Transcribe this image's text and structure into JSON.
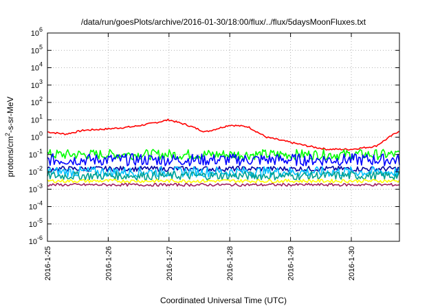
{
  "chart_data": {
    "type": "line",
    "title": "/data/run/goesPlots/archive/2016-01-30/18:00/flux/../flux/5daysMoonFluxes.txt",
    "xlabel": "Coordinated Universal Time (UTC)",
    "ylabel": {
      "prefix": "protons/cm",
      "sup": "2",
      "suffix": "-s-sr-MeV"
    },
    "x_range": [
      "2016-01-25",
      "2016-01-30T19:00"
    ],
    "x_ticks": [
      "2016-1-25",
      "2016-1-26",
      "2016-1-27",
      "2016-1-28",
      "2016-1-29",
      "2016-1-30"
    ],
    "y_scale": "log",
    "y_range": [
      1e-06,
      1000000.0
    ],
    "y_ticks": [
      {
        "base": "10",
        "exp": "-6"
      },
      {
        "base": "10",
        "exp": "-5"
      },
      {
        "base": "10",
        "exp": "-4"
      },
      {
        "base": "10",
        "exp": "-3"
      },
      {
        "base": "10",
        "exp": "-2"
      },
      {
        "base": "10",
        "exp": "-1"
      },
      {
        "base": "10",
        "exp": "0"
      },
      {
        "base": "10",
        "exp": "1"
      },
      {
        "base": "10",
        "exp": "2"
      },
      {
        "base": "10",
        "exp": "3"
      },
      {
        "base": "10",
        "exp": "4"
      },
      {
        "base": "10",
        "exp": "5"
      },
      {
        "base": "10",
        "exp": "6"
      }
    ],
    "grid": true,
    "series": [
      {
        "color": "#ff0000",
        "noise": 0.05,
        "x_days": [
          0,
          0.3,
          0.6,
          1.0,
          1.4,
          1.7,
          2.0,
          2.3,
          2.6,
          3.0,
          3.3,
          3.6,
          4.0,
          4.3,
          4.6,
          5.0,
          5.4,
          5.8
        ],
        "y": [
          2.0,
          1.5,
          2.5,
          3.0,
          4.0,
          6.0,
          10.0,
          5.0,
          2.0,
          5.0,
          4.0,
          1.0,
          0.5,
          0.3,
          0.2,
          0.2,
          0.3,
          2.5
        ]
      },
      {
        "color": "#00ff00",
        "noise": 0.3,
        "x_days": [
          0,
          5.8
        ],
        "y": [
          0.1,
          0.1
        ]
      },
      {
        "color": "#0000ff",
        "noise": 0.35,
        "x_days": [
          0,
          5.8
        ],
        "y": [
          0.05,
          0.05
        ]
      },
      {
        "color": "#0000a0",
        "noise": 0.15,
        "x_days": [
          0,
          5.8
        ],
        "y": [
          0.015,
          0.015
        ]
      },
      {
        "color": "#00c0ff",
        "noise": 0.3,
        "x_days": [
          0,
          5.8
        ],
        "y": [
          0.01,
          0.01
        ]
      },
      {
        "color": "#00a090",
        "noise": 0.25,
        "x_days": [
          0,
          5.8
        ],
        "y": [
          0.006,
          0.006
        ]
      },
      {
        "color": "#ffff00",
        "noise": 0.1,
        "x_days": [
          0,
          5.8
        ],
        "y": [
          0.003,
          0.003
        ]
      },
      {
        "color": "#a02060",
        "noise": 0.08,
        "x_days": [
          0,
          5.8
        ],
        "y": [
          0.0018,
          0.0018
        ]
      }
    ]
  }
}
